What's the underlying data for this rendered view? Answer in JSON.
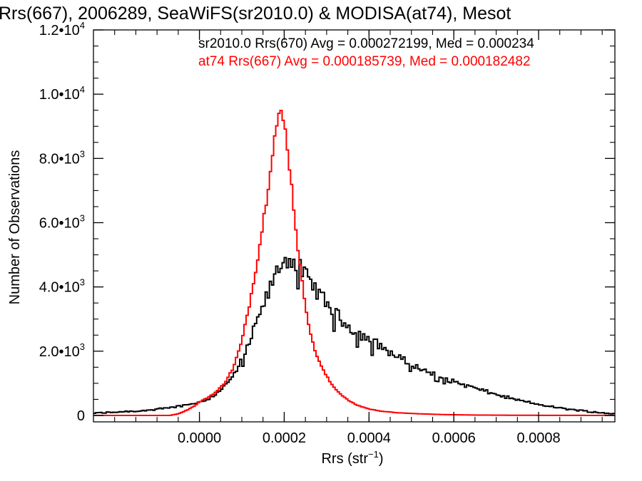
{
  "chart_data": {
    "type": "histogram",
    "title": "Rrs(667), 2006289, SeaWiFS(sr2010.0) & MODISA(at74), Mesot",
    "xlabel": "Rrs (str",
    "xlabel_superscript": "−1",
    "xlabel_suffix": ")",
    "ylabel": "Number of Observations",
    "xlim": [
      -0.00025,
      0.00098
    ],
    "ylim": [
      -200,
      12000
    ],
    "x_ticks": [
      {
        "value": 0.0,
        "label": "0.0000"
      },
      {
        "value": 0.0002,
        "label": "0.0002"
      },
      {
        "value": 0.0004,
        "label": "0.0004"
      },
      {
        "value": 0.0006,
        "label": "0.0006"
      },
      {
        "value": 0.0008,
        "label": "0.0008"
      }
    ],
    "y_ticks": [
      {
        "value": 0,
        "mantissa": "0",
        "exponent": ""
      },
      {
        "value": 2000,
        "mantissa": "2.0•10",
        "exponent": "3"
      },
      {
        "value": 4000,
        "mantissa": "4.0•10",
        "exponent": "3"
      },
      {
        "value": 6000,
        "mantissa": "6.0•10",
        "exponent": "3"
      },
      {
        "value": 8000,
        "mantissa": "8.0•10",
        "exponent": "3"
      },
      {
        "value": 10000,
        "mantissa": "1.0•10",
        "exponent": "4"
      },
      {
        "value": 12000,
        "mantissa": "1.2•10",
        "exponent": "4"
      }
    ],
    "grid": false,
    "legend_placement": "top-right",
    "series": [
      {
        "name": "sr2010.0 Rrs(670) Avg = 0.000272199, Med = 0.000234",
        "color": "#000000",
        "bin_width": 5e-06,
        "points": [
          [
            -0.00025,
            70
          ],
          [
            -0.0002,
            100
          ],
          [
            -0.00015,
            140
          ],
          [
            -0.0001,
            190
          ],
          [
            -5e-05,
            280
          ],
          [
            0.0,
            410
          ],
          [
            3e-05,
            580
          ],
          [
            5e-05,
            800
          ],
          [
            7e-05,
            1050
          ],
          [
            9e-05,
            1450
          ],
          [
            0.00011,
            2000
          ],
          [
            0.00013,
            2700
          ],
          [
            0.00015,
            3400
          ],
          [
            0.00017,
            4050
          ],
          [
            0.00019,
            4700
          ],
          [
            0.00021,
            4900
          ],
          [
            0.00023,
            4700
          ],
          [
            0.00025,
            4350
          ],
          [
            0.00027,
            4000
          ],
          [
            0.00029,
            3650
          ],
          [
            0.00031,
            3350
          ],
          [
            0.00033,
            3050
          ],
          [
            0.00035,
            2800
          ],
          [
            0.00037,
            2600
          ],
          [
            0.00039,
            2450
          ],
          [
            0.00041,
            2300
          ],
          [
            0.00043,
            2150
          ],
          [
            0.00045,
            1950
          ],
          [
            0.00047,
            1800
          ],
          [
            0.0005,
            1600
          ],
          [
            0.00053,
            1400
          ],
          [
            0.00056,
            1250
          ],
          [
            0.0006,
            1050
          ],
          [
            0.00065,
            850
          ],
          [
            0.0007,
            650
          ],
          [
            0.00075,
            480
          ],
          [
            0.0008,
            340
          ],
          [
            0.00085,
            230
          ],
          [
            0.0009,
            150
          ],
          [
            0.00095,
            80
          ],
          [
            0.00098,
            55
          ]
        ]
      },
      {
        "name": "at74 Rrs(667) Avg = 0.000185739, Med = 0.000182482",
        "color": "#ff0000",
        "bin_width": 5e-06,
        "points": [
          [
            -0.00025,
            0
          ],
          [
            -7e-05,
            0
          ],
          [
            -5e-05,
            50
          ],
          [
            -3e-05,
            160
          ],
          [
            -1e-05,
            310
          ],
          [
            0.0,
            420
          ],
          [
            2e-05,
            560
          ],
          [
            4e-05,
            740
          ],
          [
            6e-05,
            1020
          ],
          [
            8e-05,
            1480
          ],
          [
            0.0001,
            2300
          ],
          [
            0.00012,
            3600
          ],
          [
            0.00014,
            5100
          ],
          [
            0.00016,
            6900
          ],
          [
            0.00017,
            8000
          ],
          [
            0.00018,
            8900
          ],
          [
            0.00019,
            9450
          ],
          [
            0.0002,
            9100
          ],
          [
            0.00021,
            8100
          ],
          [
            0.00022,
            6800
          ],
          [
            0.00023,
            5500
          ],
          [
            0.00024,
            4350
          ],
          [
            0.00025,
            3450
          ],
          [
            0.00026,
            2700
          ],
          [
            0.00027,
            2100
          ],
          [
            0.00029,
            1450
          ],
          [
            0.00031,
            1000
          ],
          [
            0.00033,
            700
          ],
          [
            0.00035,
            480
          ],
          [
            0.00037,
            330
          ],
          [
            0.0004,
            200
          ],
          [
            0.00043,
            130
          ],
          [
            0.00047,
            80
          ],
          [
            0.00052,
            50
          ],
          [
            0.00058,
            25
          ],
          [
            0.00065,
            12
          ],
          [
            0.00075,
            5
          ],
          [
            0.00085,
            2
          ],
          [
            0.00098,
            0
          ]
        ]
      }
    ]
  }
}
